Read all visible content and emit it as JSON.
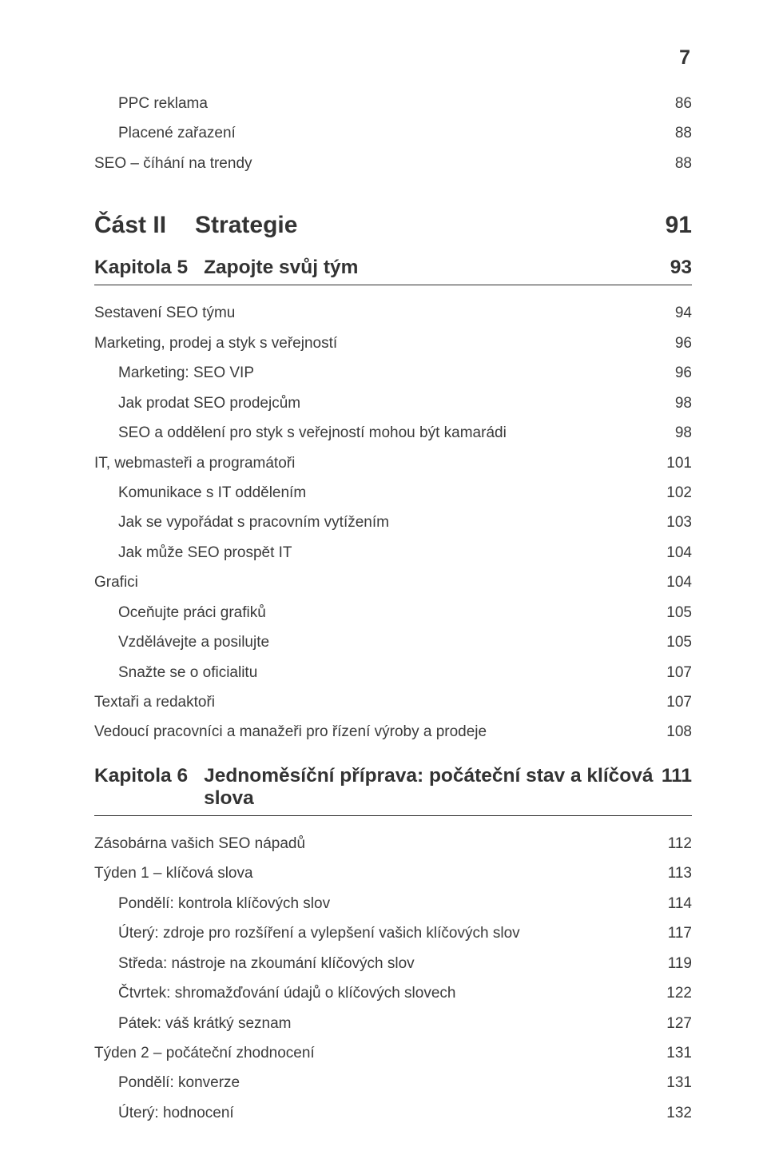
{
  "page_number_top": "7",
  "colors": {
    "text": "#3a3a3a",
    "heading": "#333333",
    "divider": "#2b2b2b",
    "background": "#ffffff"
  },
  "typography": {
    "body_fontsize_pt": 14,
    "chapter_fontsize_pt": 18,
    "part_fontsize_pt": 22,
    "font_family": "Myriad Pro / sans-serif"
  },
  "pre_entries": [
    {
      "label": "PPC reklama",
      "page": "86",
      "level": 1
    },
    {
      "label": "Placené zařazení",
      "page": "88",
      "level": 1
    },
    {
      "label": "SEO – číhání na trendy",
      "page": "88",
      "level": 0
    }
  ],
  "part": {
    "prefix": "Část II",
    "title": "Strategie",
    "page": "91"
  },
  "chapter5": {
    "prefix": "Kapitola 5",
    "title": "Zapojte svůj tým",
    "page": "93"
  },
  "ch5_entries": [
    {
      "label": "Sestavení SEO týmu",
      "page": "94",
      "level": 0
    },
    {
      "label": "Marketing, prodej a styk s veřejností",
      "page": "96",
      "level": 0
    },
    {
      "label": "Marketing: SEO VIP",
      "page": "96",
      "level": 1
    },
    {
      "label": "Jak prodat SEO prodejcům",
      "page": "98",
      "level": 1
    },
    {
      "label": "SEO a oddělení pro styk s veřejností mohou být kamarádi",
      "page": "98",
      "level": 1
    },
    {
      "label": "IT, webmasteři a programátoři",
      "page": "101",
      "level": 0
    },
    {
      "label": "Komunikace s IT oddělením",
      "page": "102",
      "level": 1
    },
    {
      "label": "Jak se vypořádat s pracovním vytížením",
      "page": "103",
      "level": 1
    },
    {
      "label": "Jak může SEO prospět IT",
      "page": "104",
      "level": 1
    },
    {
      "label": "Grafici",
      "page": "104",
      "level": 0
    },
    {
      "label": "Oceňujte práci grafiků",
      "page": "105",
      "level": 1
    },
    {
      "label": "Vzdělávejte a posilujte",
      "page": "105",
      "level": 1
    },
    {
      "label": "Snažte se o oficialitu",
      "page": "107",
      "level": 1
    },
    {
      "label": "Textaři a redaktoři",
      "page": "107",
      "level": 0
    },
    {
      "label": "Vedoucí pracovníci a manažeři pro řízení výroby a prodeje",
      "page": "108",
      "level": 0
    }
  ],
  "chapter6": {
    "prefix": "Kapitola 6",
    "title": "Jednoměsíční příprava: počáteční stav a klíčová slova",
    "page": "111"
  },
  "ch6_entries": [
    {
      "label": "Zásobárna vašich SEO nápadů",
      "page": "112",
      "level": 0
    },
    {
      "label": "Týden 1 – klíčová slova",
      "page": "113",
      "level": 0
    },
    {
      "label": "Pondělí: kontrola klíčových slov",
      "page": "114",
      "level": 1
    },
    {
      "label": "Úterý: zdroje pro rozšíření a vylepšení vašich klíčových slov",
      "page": "117",
      "level": 1
    },
    {
      "label": "Středa: nástroje na zkoumání klíčových slov",
      "page": "119",
      "level": 1
    },
    {
      "label": "Čtvrtek: shromažďování údajů o klíčových slovech",
      "page": "122",
      "level": 1
    },
    {
      "label": "Pátek: váš krátký seznam",
      "page": "127",
      "level": 1
    },
    {
      "label": "Týden 2 – počáteční zhodnocení",
      "page": "131",
      "level": 0
    },
    {
      "label": "Pondělí: konverze",
      "page": "131",
      "level": 1
    },
    {
      "label": "Úterý: hodnocení",
      "page": "132",
      "level": 1
    }
  ]
}
